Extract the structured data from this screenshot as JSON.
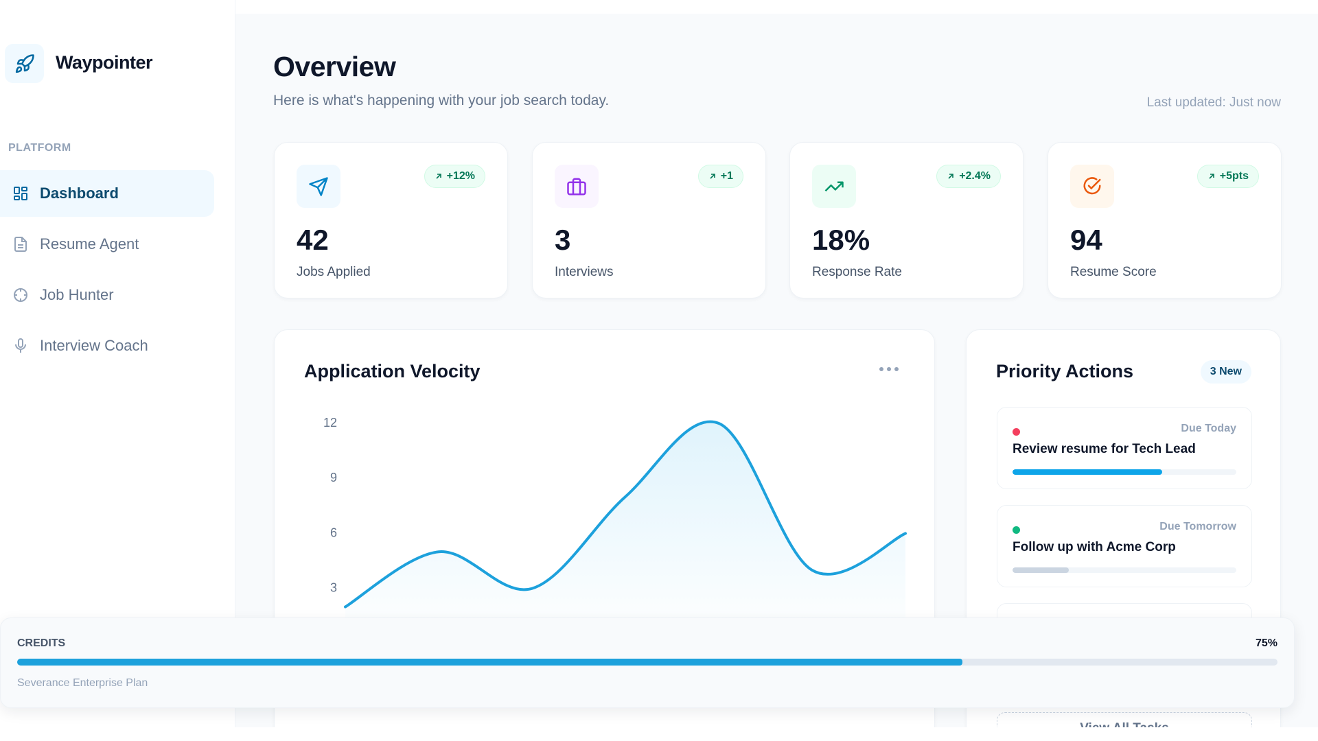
{
  "sidebar": {
    "brand": "Waypointer",
    "section": "PLATFORM",
    "nav": [
      "Dashboard",
      "Resume Agent",
      "Job Hunter",
      "Interview Coach"
    ]
  },
  "header": {
    "title": "Overview",
    "subtitle": "Here is what's happening with your job search today.",
    "updated": "Last updated: Just now"
  },
  "stats": [
    {
      "value": "42",
      "label": "Jobs Applied",
      "change": "+12%"
    },
    {
      "value": "3",
      "label": "Interviews",
      "change": "+1"
    },
    {
      "value": "18%",
      "label": "Response Rate",
      "change": "+2.4%"
    },
    {
      "value": "94",
      "label": "Resume Score",
      "change": "+5pts"
    }
  ],
  "chart_data": {
    "type": "line",
    "title": "Application Velocity",
    "categories": [
      null,
      null,
      null,
      null,
      null,
      null,
      null
    ],
    "values": [
      2,
      5,
      3,
      8,
      12,
      4,
      6
    ],
    "color": "#1da1dc",
    "ylim": [
      0,
      12
    ],
    "yticks": [
      3,
      6,
      9,
      12
    ]
  },
  "actions": {
    "title": "Priority Actions",
    "badge": "3 New",
    "items": [
      {
        "due": "Due Today",
        "task": "Review resume for Tech Lead",
        "progress": 67
      },
      {
        "due": "Due Tomorrow",
        "task": "Follow up with Acme Corp",
        "progress": 25
      }
    ],
    "button": "View All Tasks"
  },
  "credits": {
    "label": "CREDITS",
    "value": 75,
    "value_label": "75%",
    "plan": "Severance Enterprise Plan"
  }
}
